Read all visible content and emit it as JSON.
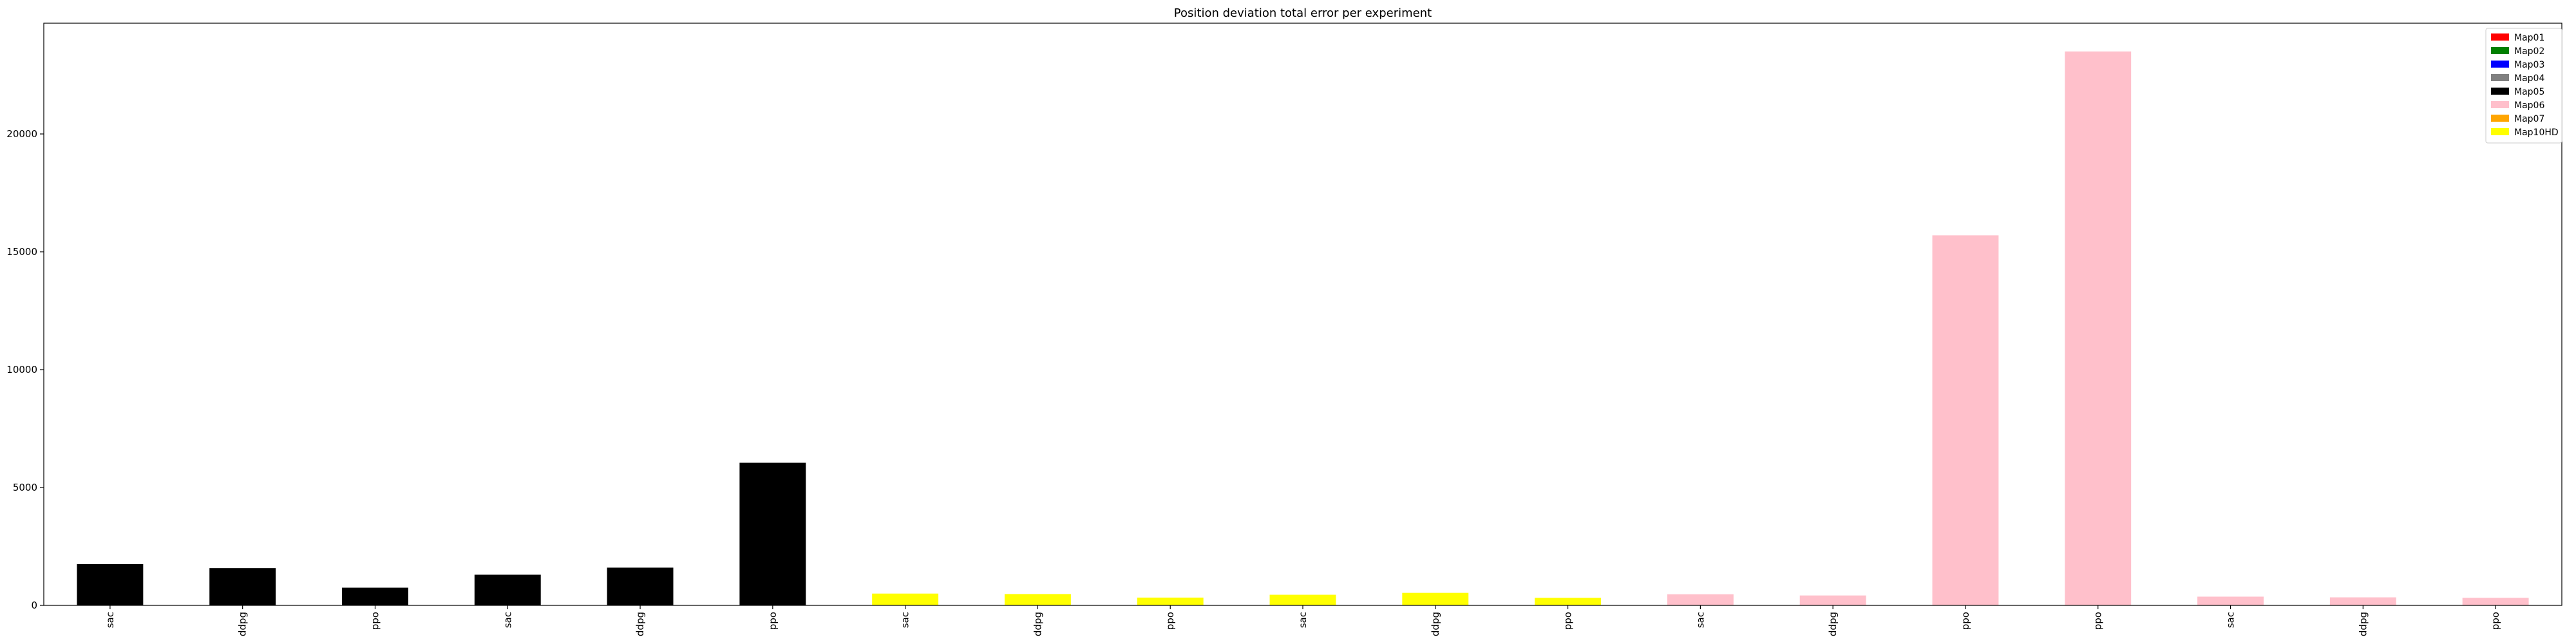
{
  "chart_data": {
    "type": "bar",
    "title": "Position deviation total error per experiment",
    "xlabel": "",
    "ylabel": "",
    "ylim": [
      0,
      24700
    ],
    "yticks": [
      0,
      5000,
      10000,
      15000,
      20000
    ],
    "grid": false,
    "legend_position": "top-right",
    "legend": [
      {
        "name": "Map01",
        "color": "#ff0000"
      },
      {
        "name": "Map02",
        "color": "#008000"
      },
      {
        "name": "Map03",
        "color": "#0000ff"
      },
      {
        "name": "Map04",
        "color": "#808080"
      },
      {
        "name": "Map05",
        "color": "#000000"
      },
      {
        "name": "Map06",
        "color": "#ffc0cb"
      },
      {
        "name": "Map07",
        "color": "#ffa500"
      },
      {
        "name": "Map10HD",
        "color": "#ffff00"
      }
    ],
    "categories": [
      "sac",
      "ddpg",
      "ppo",
      "sac",
      "ddpg",
      "ppo",
      "sac",
      "ddpg",
      "ppo",
      "sac",
      "ddpg",
      "ppo",
      "sac",
      "ddpg",
      "ppo",
      "ppo",
      "sac",
      "ddpg",
      "ppo"
    ],
    "values": [
      1750,
      1580,
      750,
      1300,
      1600,
      6050,
      500,
      480,
      330,
      450,
      530,
      320,
      470,
      420,
      15700,
      23500,
      370,
      340,
      320
    ],
    "bar_colors": [
      "#000000",
      "#000000",
      "#000000",
      "#000000",
      "#000000",
      "#000000",
      "#ffff00",
      "#ffff00",
      "#ffff00",
      "#ffff00",
      "#ffff00",
      "#ffff00",
      "#ffc0cb",
      "#ffc0cb",
      "#ffc0cb",
      "#ffc0cb",
      "#ffc0cb",
      "#ffc0cb",
      "#ffc0cb"
    ]
  }
}
